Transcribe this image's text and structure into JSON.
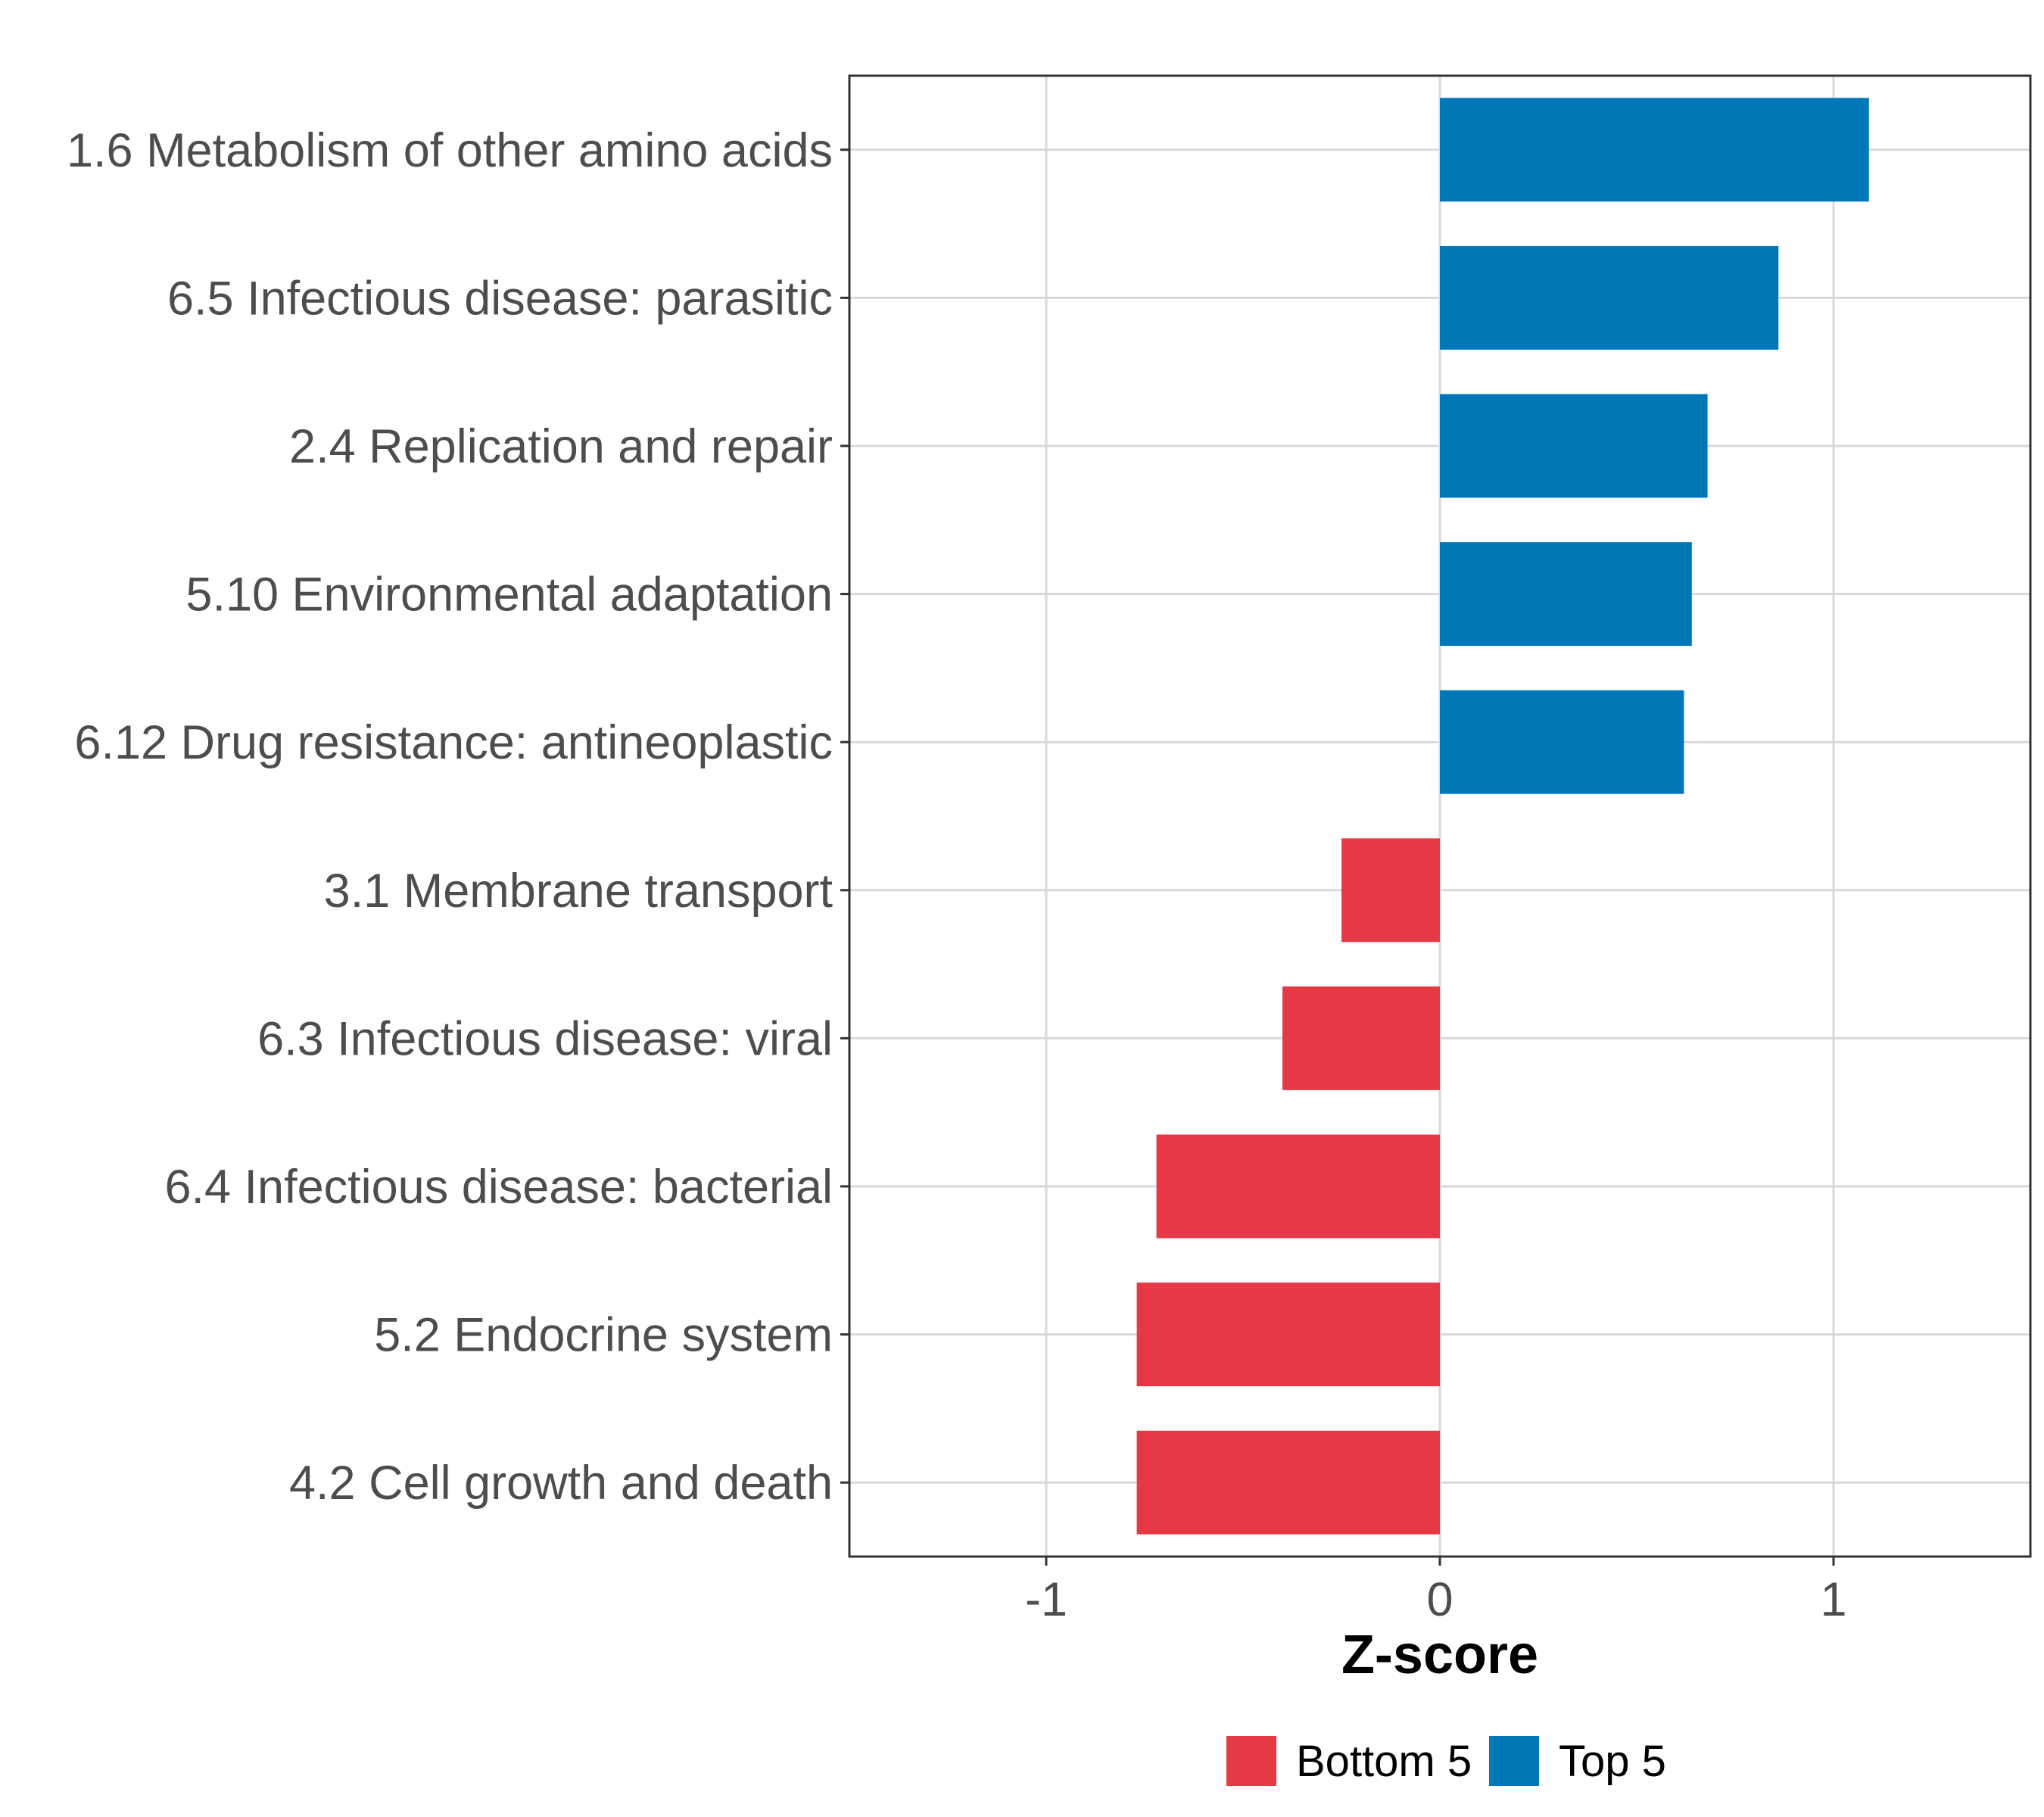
{
  "chart_data": {
    "type": "bar",
    "orientation": "horizontal",
    "title": "",
    "xlabel": "Z-score",
    "ylabel": "",
    "xlim": [
      -1.5,
      1.5
    ],
    "xticks": [
      -1,
      0,
      1
    ],
    "xtick_labels": [
      "-1",
      "0",
      "1"
    ],
    "grid": true,
    "legend_position": "bottom",
    "categories": [
      "1.6 Metabolism of other amino acids",
      "6.5 Infectious disease: parasitic",
      "2.4 Replication and repair",
      "5.10 Environmental adaptation",
      "6.12 Drug resistance: antineoplastic",
      "3.1 Membrane transport",
      "6.3 Infectious disease: viral",
      "6.4 Infectious disease: bacterial",
      "5.2 Endocrine system",
      "4.2 Cell growth and death"
    ],
    "values": [
      1.09,
      0.86,
      0.68,
      0.64,
      0.62,
      -0.25,
      -0.4,
      -0.72,
      -0.77,
      -0.77
    ],
    "groups": [
      "Top 5",
      "Top 5",
      "Top 5",
      "Top 5",
      "Top 5",
      "Bottom 5",
      "Bottom 5",
      "Bottom 5",
      "Bottom 5",
      "Bottom 5"
    ],
    "legend": [
      {
        "label": "Bottom 5",
        "color": "#E63946"
      },
      {
        "label": "Top 5",
        "color": "#0077B6"
      }
    ]
  }
}
